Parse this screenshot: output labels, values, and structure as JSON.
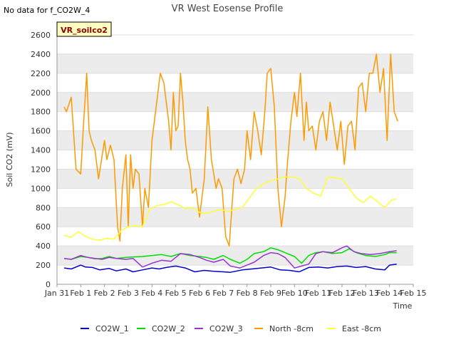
{
  "page": {
    "nodata_text": "No data for f_CO2W_4",
    "site_badge": "VR_soilco2"
  },
  "chart_data": {
    "type": "line",
    "title": "VR West Eosense Profile",
    "xlabel": "Time",
    "ylabel": "Soil CO2 (mV)",
    "xlim": [
      0,
      15
    ],
    "ylim": [
      0,
      2600
    ],
    "x_ticks": [
      {
        "x": 0,
        "label": "Jan 31"
      },
      {
        "x": 1,
        "label": "Feb 1"
      },
      {
        "x": 2,
        "label": "Feb 2"
      },
      {
        "x": 3,
        "label": "Feb 3"
      },
      {
        "x": 4,
        "label": "Feb 4"
      },
      {
        "x": 5,
        "label": "Feb 5"
      },
      {
        "x": 6,
        "label": "Feb 6"
      },
      {
        "x": 7,
        "label": "Feb 7"
      },
      {
        "x": 8,
        "label": "Feb 8"
      },
      {
        "x": 9,
        "label": "Feb 9"
      },
      {
        "x": 10,
        "label": "Feb 10"
      },
      {
        "x": 11,
        "label": "Feb 11"
      },
      {
        "x": 12,
        "label": "Feb 12"
      },
      {
        "x": 13,
        "label": "Feb 13"
      },
      {
        "x": 14,
        "label": "Feb 14"
      },
      {
        "x": 15,
        "label": "Feb 15"
      }
    ],
    "y_ticks": [
      0,
      200,
      400,
      600,
      800,
      1000,
      1200,
      1400,
      1600,
      1800,
      2000,
      2200,
      2400,
      2600
    ],
    "grid": "horizontal alternating bands",
    "legend_position": "bottom",
    "series": [
      {
        "name": "CO2W_1",
        "color": "#0000cc",
        "x": [
          0.3,
          0.6,
          1.0,
          1.2,
          1.5,
          1.8,
          2.2,
          2.5,
          2.9,
          3.2,
          3.6,
          4.0,
          4.3,
          4.6,
          5.0,
          5.4,
          5.8,
          6.2,
          6.6,
          7.0,
          7.3,
          7.8,
          8.2,
          8.6,
          9.0,
          9.4,
          9.8,
          10.2,
          10.6,
          11.0,
          11.4,
          11.8,
          12.2,
          12.6,
          13.0,
          13.4,
          13.8,
          14.0,
          14.3
        ],
        "y": [
          170,
          160,
          200,
          180,
          175,
          150,
          165,
          140,
          160,
          130,
          150,
          170,
          160,
          175,
          190,
          170,
          130,
          145,
          135,
          130,
          125,
          150,
          160,
          170,
          180,
          150,
          145,
          130,
          175,
          180,
          170,
          185,
          190,
          175,
          185,
          160,
          150,
          200,
          210
        ]
      },
      {
        "name": "CO2W_2",
        "color": "#00dd00",
        "x": [
          0.3,
          0.6,
          1.0,
          1.3,
          1.6,
          1.9,
          2.2,
          2.5,
          2.9,
          3.2,
          3.6,
          4.0,
          4.4,
          4.8,
          5.2,
          5.6,
          6.0,
          6.3,
          6.6,
          7.0,
          7.3,
          7.7,
          8.0,
          8.3,
          8.7,
          9.0,
          9.3,
          9.6,
          10.0,
          10.3,
          10.6,
          10.9,
          11.2,
          11.6,
          12.0,
          12.3,
          12.6,
          13.0,
          13.4,
          13.8,
          14.0,
          14.3
        ],
        "y": [
          270,
          260,
          290,
          280,
          265,
          270,
          290,
          270,
          280,
          285,
          290,
          300,
          310,
          290,
          320,
          300,
          290,
          280,
          260,
          300,
          260,
          220,
          260,
          320,
          340,
          380,
          360,
          330,
          290,
          220,
          300,
          330,
          340,
          320,
          330,
          370,
          330,
          300,
          290,
          310,
          330,
          330
        ]
      },
      {
        "name": "CO2W_3",
        "color": "#9933cc",
        "x": [
          0.3,
          0.6,
          1.0,
          1.3,
          1.6,
          1.9,
          2.2,
          2.5,
          2.9,
          3.2,
          3.6,
          4.0,
          4.4,
          4.8,
          5.2,
          5.6,
          6.0,
          6.3,
          6.6,
          7.0,
          7.3,
          7.7,
          8.0,
          8.3,
          8.7,
          9.0,
          9.3,
          9.6,
          10.0,
          10.3,
          10.6,
          10.9,
          11.2,
          11.6,
          12.0,
          12.2,
          12.5,
          12.8,
          13.2,
          13.6,
          14.0,
          14.3
        ],
        "y": [
          270,
          260,
          300,
          280,
          270,
          260,
          280,
          270,
          260,
          270,
          180,
          220,
          250,
          240,
          320,
          310,
          280,
          250,
          230,
          260,
          190,
          170,
          200,
          230,
          300,
          330,
          320,
          280,
          170,
          190,
          210,
          320,
          340,
          330,
          380,
          400,
          340,
          320,
          310,
          320,
          340,
          350
        ]
      },
      {
        "name": "North -8cm",
        "color": "#ff9900",
        "x": [
          0.3,
          0.4,
          0.6,
          0.8,
          1.0,
          1.1,
          1.25,
          1.35,
          1.45,
          1.6,
          1.75,
          2.0,
          2.1,
          2.25,
          2.4,
          2.55,
          2.65,
          2.75,
          2.9,
          3.0,
          3.1,
          3.2,
          3.3,
          3.45,
          3.6,
          3.7,
          3.85,
          4.0,
          4.2,
          4.35,
          4.5,
          4.7,
          4.8,
          4.9,
          5.0,
          5.1,
          5.2,
          5.3,
          5.4,
          5.5,
          5.6,
          5.7,
          5.85,
          6.0,
          6.2,
          6.35,
          6.5,
          6.7,
          6.8,
          6.95,
          7.1,
          7.25,
          7.45,
          7.6,
          7.75,
          7.9,
          8.0,
          8.15,
          8.3,
          8.45,
          8.6,
          8.75,
          8.85,
          9.0,
          9.15,
          9.3,
          9.45,
          9.6,
          9.7,
          9.85,
          10.0,
          10.1,
          10.25,
          10.4,
          10.5,
          10.6,
          10.75,
          10.9,
          11.05,
          11.2,
          11.35,
          11.5,
          11.65,
          11.8,
          11.95,
          12.1,
          12.25,
          12.4,
          12.55,
          12.7,
          12.85,
          13.0,
          13.15,
          13.3,
          13.45,
          13.6,
          13.75,
          13.9,
          14.05,
          14.2,
          14.35
        ],
        "y": [
          1850,
          1800,
          1950,
          1200,
          1150,
          1600,
          2200,
          1600,
          1500,
          1400,
          1100,
          1500,
          1300,
          1450,
          1300,
          600,
          450,
          1000,
          1350,
          600,
          1350,
          1000,
          1200,
          1150,
          600,
          1000,
          800,
          1500,
          1900,
          2200,
          2100,
          1700,
          1400,
          2000,
          1600,
          1650,
          2200,
          1900,
          1500,
          1300,
          1200,
          950,
          1000,
          700,
          1100,
          1850,
          1300,
          1000,
          1100,
          1000,
          500,
          400,
          1100,
          1200,
          1050,
          1200,
          1600,
          1300,
          1800,
          1600,
          1350,
          1800,
          2200,
          2250,
          1850,
          1000,
          600,
          900,
          1250,
          1700,
          2000,
          1750,
          2200,
          1500,
          1900,
          1600,
          1650,
          1400,
          1700,
          1800,
          1500,
          1900,
          1650,
          1400,
          1700,
          1250,
          1650,
          1700,
          1400,
          2050,
          2100,
          1800,
          2200,
          2200,
          2400,
          2000,
          2250,
          1500,
          2400,
          1800,
          1700
        ]
      },
      {
        "name": "East -8cm",
        "color": "#ffff33",
        "x": [
          0.3,
          0.6,
          0.9,
          1.2,
          1.5,
          1.8,
          2.1,
          2.4,
          2.7,
          3.0,
          3.3,
          3.6,
          3.9,
          4.2,
          4.5,
          4.8,
          5.1,
          5.4,
          5.7,
          6.0,
          6.3,
          6.6,
          6.9,
          7.2,
          7.5,
          7.8,
          8.1,
          8.4,
          8.7,
          9.0,
          9.3,
          9.6,
          9.9,
          10.2,
          10.5,
          10.8,
          11.1,
          11.4,
          11.7,
          12.0,
          12.3,
          12.6,
          12.9,
          13.2,
          13.5,
          13.8,
          14.1,
          14.3
        ],
        "y": [
          510,
          490,
          550,
          500,
          470,
          460,
          480,
          470,
          560,
          600,
          610,
          600,
          780,
          820,
          830,
          860,
          830,
          790,
          800,
          750,
          740,
          760,
          780,
          760,
          780,
          800,
          900,
          1000,
          1050,
          1080,
          1100,
          1120,
          1120,
          1100,
          1000,
          950,
          920,
          1120,
          1110,
          1100,
          1000,
          900,
          850,
          920,
          860,
          800,
          880,
          890
        ]
      }
    ]
  }
}
